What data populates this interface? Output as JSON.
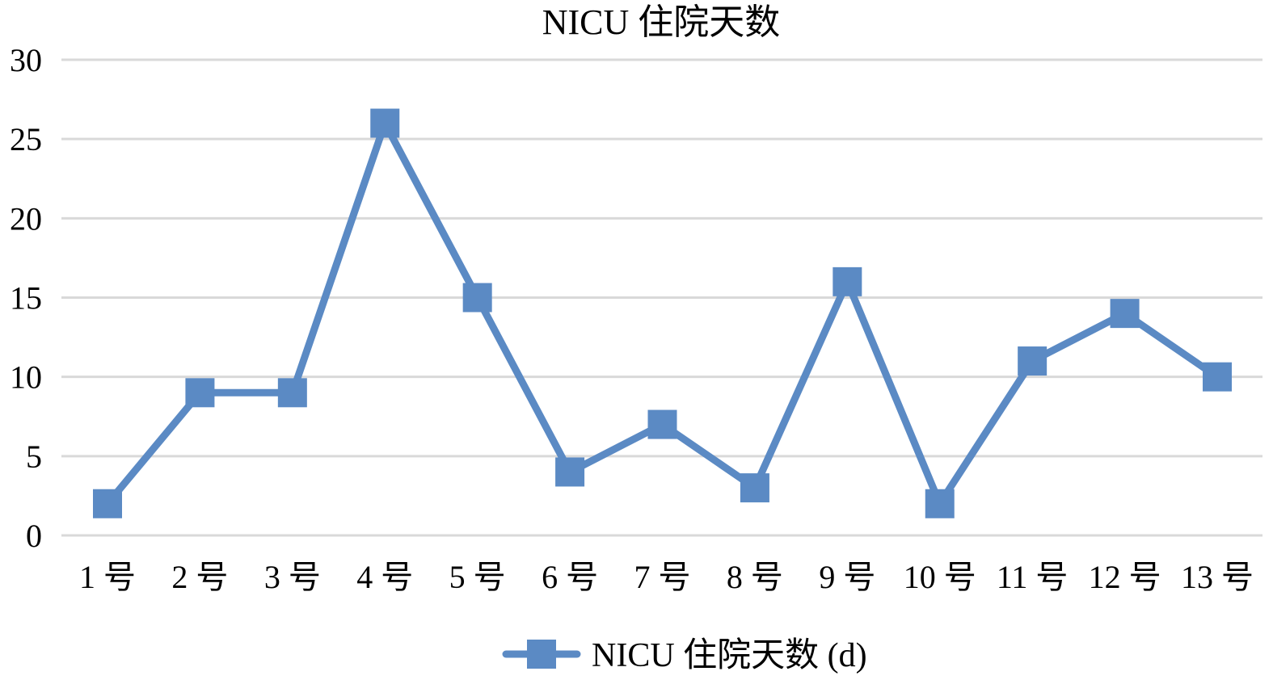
{
  "chart_data": {
    "type": "line",
    "title": "NICU 住院天数",
    "xlabel": "",
    "ylabel": "",
    "categories": [
      "1 号",
      "2 号",
      "3 号",
      "4 号",
      "5 号",
      "6 号",
      "7 号",
      "8 号",
      "9 号",
      "10 号",
      "11 号",
      "12 号",
      "13 号"
    ],
    "series": [
      {
        "name": "NICU 住院天数 (d)",
        "values": [
          2,
          9,
          9,
          26,
          15,
          4,
          7,
          3,
          16,
          2,
          11,
          14,
          10
        ],
        "color": "#5b8ac4",
        "marker": "square"
      }
    ],
    "ylim": [
      0,
      30
    ],
    "yticks": [
      0,
      5,
      10,
      15,
      20,
      25,
      30
    ],
    "grid": true,
    "legend_position": "bottom"
  }
}
